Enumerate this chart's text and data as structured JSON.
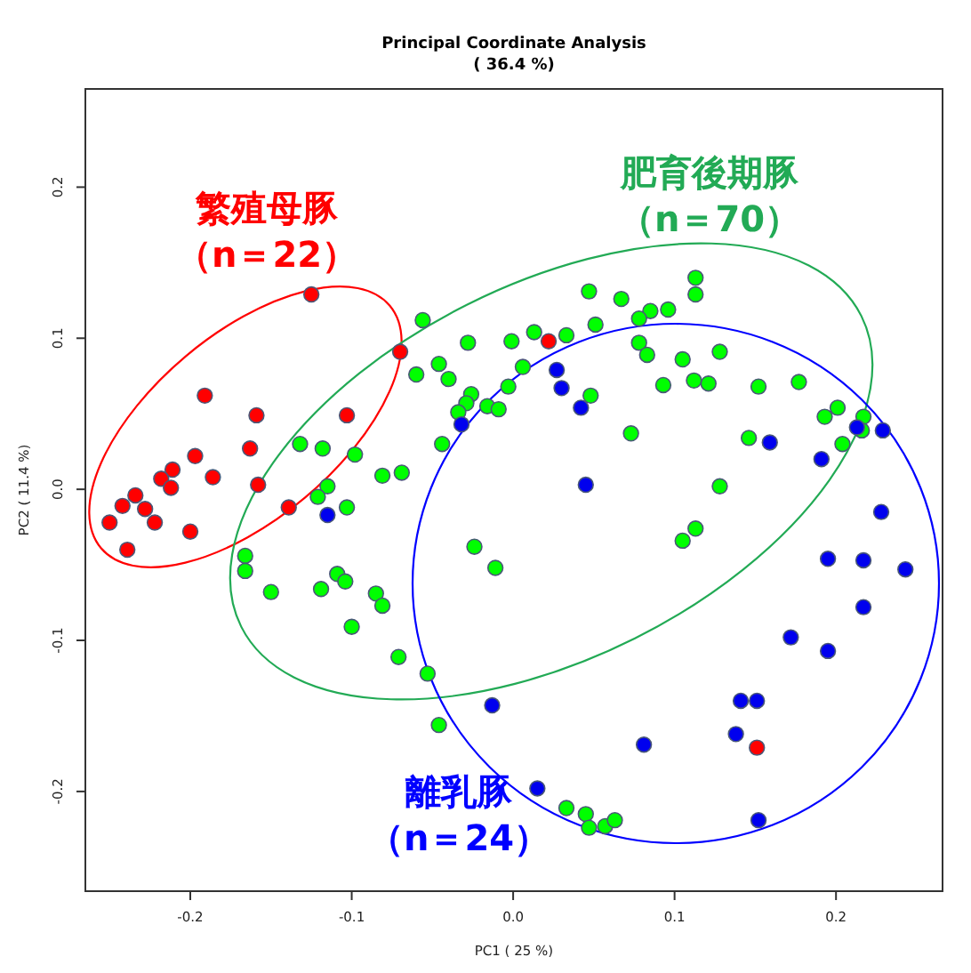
{
  "chart_data": {
    "type": "scatter",
    "title": "Principal Coordinate Analysis",
    "subtitle": "( 36.4 %)",
    "xlabel": "PC1 ( 25 %)",
    "ylabel": "PC2 ( 11.4 %)",
    "xlim": [
      -0.265,
      0.266
    ],
    "ylim": [
      -0.266,
      0.265
    ],
    "xticks": [
      -0.2,
      -0.1,
      {
        "value": 0,
        "label": "0.0"
      },
      0.1,
      0.2
    ],
    "yticks": [
      -0.2,
      -0.1,
      {
        "value": 0,
        "label": "0.0"
      },
      0.1,
      0.2
    ],
    "marker": "circle",
    "series": [
      {
        "name": "繁殖母豚",
        "color": "#ff0000",
        "x": [
          -0.125,
          -0.07,
          -0.191,
          -0.159,
          -0.103,
          -0.163,
          -0.197,
          -0.211,
          -0.218,
          -0.186,
          -0.212,
          -0.158,
          -0.234,
          -0.242,
          -0.228,
          -0.139,
          -0.25,
          -0.222,
          -0.2,
          -0.239,
          0.022,
          0.151
        ],
        "values": [
          0.129,
          0.091,
          0.062,
          0.049,
          0.049,
          0.027,
          0.022,
          0.013,
          0.007,
          0.008,
          0.001,
          0.003,
          -0.004,
          -0.011,
          -0.013,
          -0.012,
          -0.022,
          -0.022,
          -0.028,
          -0.04,
          0.098,
          -0.171
        ]
      },
      {
        "name": "肥育後期豚",
        "color": "#00ff00",
        "x": [
          -0.056,
          -0.028,
          -0.046,
          -0.06,
          -0.04,
          -0.026,
          -0.029,
          -0.016,
          -0.009,
          -0.034,
          -0.044,
          -0.132,
          -0.118,
          -0.098,
          -0.081,
          -0.069,
          -0.115,
          -0.121,
          -0.103,
          -0.024,
          0.113,
          0.113,
          0.047,
          0.067,
          0.085,
          0.096,
          0.078,
          0.051,
          -0.001,
          0.013,
          0.033,
          0.078,
          0.083,
          0.105,
          0.128,
          0.006,
          -0.003,
          0.112,
          0.121,
          0.093,
          0.152,
          0.177,
          0.048,
          0.201,
          0.193,
          0.217,
          0.216,
          0.204,
          0.073,
          0.146,
          0.128,
          0.113,
          0.105,
          -0.166,
          -0.166,
          -0.15,
          -0.119,
          -0.109,
          -0.104,
          -0.085,
          -0.081,
          -0.1,
          -0.071,
          -0.053,
          -0.046,
          -0.011,
          0.033,
          0.045,
          0.047,
          0.057,
          0.063
        ],
        "values": [
          0.112,
          0.097,
          0.083,
          0.076,
          0.073,
          0.063,
          0.057,
          0.055,
          0.053,
          0.051,
          0.03,
          0.03,
          0.027,
          0.023,
          0.009,
          0.011,
          0.002,
          -0.005,
          -0.012,
          -0.038,
          0.14,
          0.129,
          0.131,
          0.126,
          0.118,
          0.119,
          0.113,
          0.109,
          0.098,
          0.104,
          0.102,
          0.097,
          0.089,
          0.086,
          0.091,
          0.081,
          0.068,
          0.072,
          0.07,
          0.069,
          0.068,
          0.071,
          0.062,
          0.054,
          0.048,
          0.048,
          0.039,
          0.03,
          0.037,
          0.034,
          0.002,
          -0.026,
          -0.034,
          -0.044,
          -0.054,
          -0.068,
          -0.066,
          -0.056,
          -0.061,
          -0.069,
          -0.077,
          -0.091,
          -0.111,
          -0.122,
          -0.156,
          -0.052,
          -0.211,
          -0.215,
          -0.224,
          -0.223,
          -0.219
        ]
      },
      {
        "name": "離乳豚",
        "color": "#0000ee",
        "x": [
          -0.032,
          -0.115,
          0.027,
          0.03,
          0.042,
          0.159,
          0.191,
          0.213,
          0.229,
          0.045,
          0.228,
          0.195,
          0.217,
          0.243,
          0.217,
          0.172,
          0.195,
          0.141,
          0.151,
          0.138,
          0.081,
          0.015,
          0.152,
          -0.013
        ],
        "values": [
          0.043,
          -0.017,
          0.079,
          0.067,
          0.054,
          0.031,
          0.02,
          0.041,
          0.039,
          0.003,
          -0.015,
          -0.046,
          -0.047,
          -0.053,
          -0.078,
          -0.098,
          -0.107,
          -0.14,
          -0.14,
          -0.162,
          -0.169,
          -0.198,
          -0.219,
          -0.143
        ]
      }
    ],
    "annotations": [
      "（n＝22）",
      "（n＝70）",
      "（n＝24）"
    ]
  }
}
